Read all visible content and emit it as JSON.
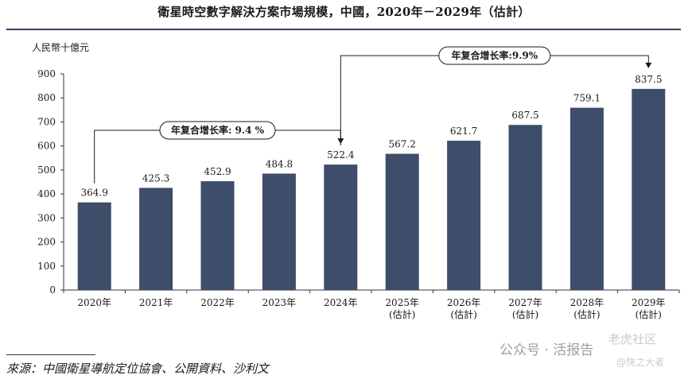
{
  "title": "衛星時空數字解決方案市場規模，中國，2020年－2029年（估計）",
  "source": "來源：中國衛星導航定位協會、公開資料、沙利文",
  "watermark": "公众号 · 活报告",
  "watermark_secondary": "老虎社区",
  "watermark_tertiary": "@快之大者",
  "chart_data": {
    "type": "bar",
    "ylabel": "人民幣十億元",
    "ylim": [
      0,
      900
    ],
    "yticks": [
      0,
      100,
      200,
      300,
      400,
      500,
      600,
      700,
      800,
      900
    ],
    "categories": [
      [
        "2020年"
      ],
      [
        "2021年"
      ],
      [
        "2022年"
      ],
      [
        "2023年"
      ],
      [
        "2024年"
      ],
      [
        "2025年",
        "(估計)"
      ],
      [
        "2026年",
        "(估計)"
      ],
      [
        "2027年",
        "(估計)"
      ],
      [
        "2028年",
        "(估計)"
      ],
      [
        "2029年",
        "(估計)"
      ]
    ],
    "values": [
      364.9,
      425.3,
      452.9,
      484.8,
      522.4,
      567.2,
      621.7,
      687.5,
      759.1,
      837.5
    ],
    "value_labels": [
      "364.9",
      "425.3",
      "452.9",
      "484.8",
      "522.4",
      "567.2",
      "621.7",
      "687.5",
      "759.1",
      "837.5"
    ],
    "bar_color": "#3d4d6a",
    "grid": false,
    "annotations": [
      {
        "label": "年复合增长率: 9.4 %",
        "from_index": 0,
        "to_index": 4
      },
      {
        "label": "年复合增长率:9.9%",
        "from_index": 4,
        "to_index": 9
      }
    ]
  }
}
